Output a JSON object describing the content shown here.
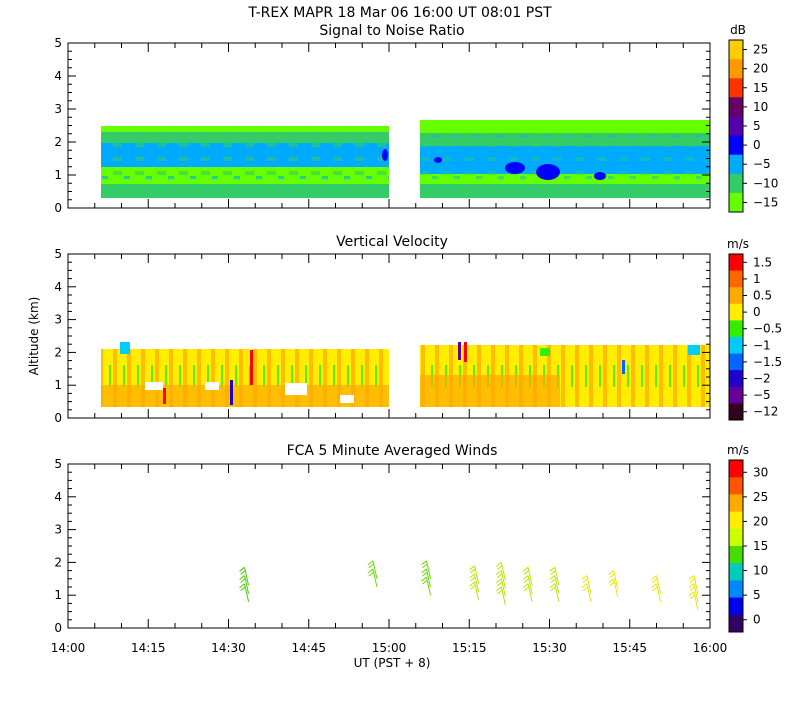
{
  "header": {
    "title": "T-REX   MAPR 18 Mar 06   16:00 UT   08:01   PST"
  },
  "xaxis": {
    "label": "UT  (PST + 8)",
    "ticks": [
      "14:00",
      "14:15",
      "14:30",
      "14:45",
      "15:00",
      "15:15",
      "15:30",
      "15:45",
      "16:00"
    ],
    "range_minutes": [
      0,
      120
    ]
  },
  "yaxis": {
    "label": "Altitude (km)",
    "ticks": [
      "0",
      "1",
      "2",
      "3",
      "4",
      "5"
    ],
    "range_km": [
      0,
      5
    ]
  },
  "panels": [
    {
      "title": "Signal to Noise Ratio",
      "unit": "dB",
      "colorbar_labels": [
        "25",
        "20",
        "15",
        "10",
        "5",
        "0",
        "−5",
        "−10",
        "−15"
      ],
      "colors": [
        "#ffcc00",
        "#ff9900",
        "#ff3300",
        "#660066",
        "#5500aa",
        "#0000ff",
        "#00aaff",
        "#33cc66",
        "#66ff00"
      ]
    },
    {
      "title": "Vertical Velocity",
      "unit": "m/s",
      "colorbar_labels": [
        "1.5",
        "1",
        "0.5",
        "0",
        "−0.5",
        "−1",
        "−1.5",
        "−2",
        "−5",
        "−12"
      ],
      "colors": [
        "#ff0000",
        "#ff6600",
        "#ffaa00",
        "#ffee00",
        "#33ee00",
        "#00ccff",
        "#0066ff",
        "#2200cc",
        "#660099",
        "#330022"
      ]
    },
    {
      "title": "FCA 5 Minute Averaged Winds",
      "unit": "m/s",
      "colorbar_labels": [
        "30",
        "25",
        "20",
        "15",
        "10",
        "5",
        "0"
      ],
      "colors": [
        "#ff0000",
        "#ff5500",
        "#ffaa00",
        "#ffee00",
        "#ccff00",
        "#44dd00",
        "#00ccbb",
        "#0088ff",
        "#0000ee",
        "#330066"
      ]
    }
  ],
  "chart_data": [
    {
      "type": "heatmap",
      "title": "Signal to Noise Ratio",
      "xlabel": "UT  (PST + 8)",
      "ylabel": "Altitude (km)",
      "units": "dB",
      "xlim": [
        0,
        120
      ],
      "ylim": [
        0,
        5
      ],
      "data_extent": {
        "time_min_segments": [
          [
            4,
            59
          ],
          [
            65,
            120
          ]
        ],
        "altitude_km": [
          0.3,
          2.3
        ]
      },
      "layers": [
        {
          "altitude_km": [
            0.3,
            0.6
          ],
          "value_db": -12
        },
        {
          "altitude_km": [
            0.6,
            1.1
          ],
          "value_db": -15
        },
        {
          "altitude_km": [
            1.1,
            1.8
          ],
          "value_db": -3
        },
        {
          "altitude_km": [
            1.8,
            2.3
          ],
          "value_db": -12
        }
      ]
    },
    {
      "type": "heatmap",
      "title": "Vertical Velocity",
      "xlabel": "UT  (PST + 8)",
      "ylabel": "Altitude (km)",
      "units": "m/s",
      "xlim": [
        0,
        120
      ],
      "ylim": [
        0,
        5
      ],
      "data_extent": {
        "time_min_segments": [
          [
            4,
            59
          ],
          [
            65,
            120
          ]
        ],
        "altitude_km": [
          0.3,
          2.2
        ]
      },
      "dominant_value_ms": 0.3
    },
    {
      "type": "scatter",
      "title": "FCA 5 Minute Averaged Winds",
      "xlabel": "UT  (PST + 8)",
      "ylabel": "Altitude (km)",
      "units": "m/s",
      "xlim": [
        0,
        120
      ],
      "ylim": [
        0,
        5
      ],
      "barbs": [
        {
          "t_min": 33,
          "alt_km": 1.85,
          "speed_ms": 14
        },
        {
          "t_min": 33,
          "alt_km": 1.6,
          "speed_ms": 14
        },
        {
          "t_min": 33,
          "alt_km": 1.35,
          "speed_ms": 14
        },
        {
          "t_min": 57,
          "alt_km": 2.05,
          "speed_ms": 15
        },
        {
          "t_min": 57,
          "alt_km": 1.8,
          "speed_ms": 15
        },
        {
          "t_min": 67,
          "alt_km": 2.05,
          "speed_ms": 15
        },
        {
          "t_min": 67,
          "alt_km": 1.8,
          "speed_ms": 15
        },
        {
          "t_min": 67,
          "alt_km": 1.55,
          "speed_ms": 15
        },
        {
          "t_min": 76,
          "alt_km": 1.9,
          "speed_ms": 19
        },
        {
          "t_min": 76,
          "alt_km": 1.65,
          "speed_ms": 19
        },
        {
          "t_min": 76,
          "alt_km": 1.4,
          "speed_ms": 19
        },
        {
          "t_min": 81,
          "alt_km": 2.0,
          "speed_ms": 17
        },
        {
          "t_min": 81,
          "alt_km": 1.75,
          "speed_ms": 17
        },
        {
          "t_min": 81,
          "alt_km": 1.5,
          "speed_ms": 17
        },
        {
          "t_min": 81,
          "alt_km": 1.25,
          "speed_ms": 18
        },
        {
          "t_min": 86,
          "alt_km": 1.85,
          "speed_ms": 19
        },
        {
          "t_min": 86,
          "alt_km": 1.6,
          "speed_ms": 19
        },
        {
          "t_min": 86,
          "alt_km": 1.35,
          "speed_ms": 19
        },
        {
          "t_min": 91,
          "alt_km": 1.85,
          "speed_ms": 18
        },
        {
          "t_min": 91,
          "alt_km": 1.6,
          "speed_ms": 18
        },
        {
          "t_min": 91,
          "alt_km": 1.35,
          "speed_ms": 19
        },
        {
          "t_min": 97,
          "alt_km": 1.6,
          "speed_ms": 20
        },
        {
          "t_min": 97,
          "alt_km": 1.35,
          "speed_ms": 20
        },
        {
          "t_min": 102,
          "alt_km": 1.75,
          "speed_ms": 20
        },
        {
          "t_min": 102,
          "alt_km": 1.5,
          "speed_ms": 20
        },
        {
          "t_min": 110,
          "alt_km": 1.6,
          "speed_ms": 20
        },
        {
          "t_min": 110,
          "alt_km": 1.35,
          "speed_ms": 20
        },
        {
          "t_min": 117,
          "alt_km": 1.6,
          "speed_ms": 20
        },
        {
          "t_min": 117,
          "alt_km": 1.35,
          "speed_ms": 20
        },
        {
          "t_min": 117,
          "alt_km": 1.1,
          "speed_ms": 20
        }
      ]
    }
  ]
}
